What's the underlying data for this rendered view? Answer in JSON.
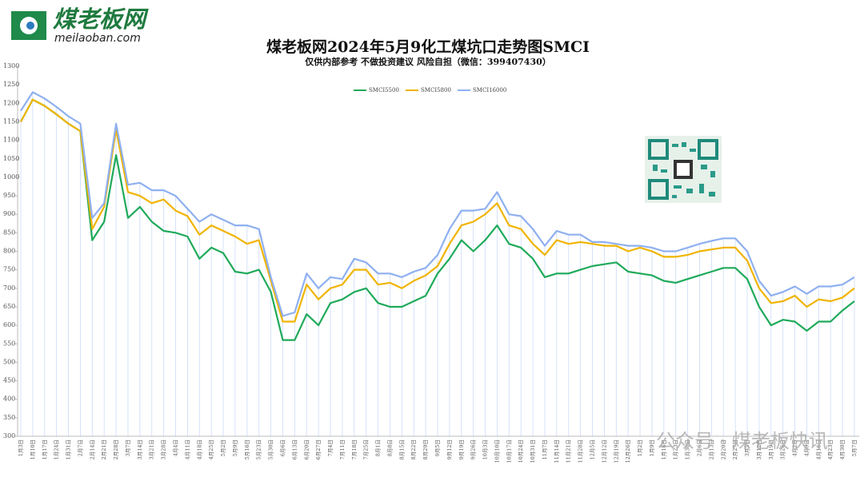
{
  "logo": {
    "name": "煤老板网",
    "site": "meilaoban.com"
  },
  "watermark": "公众号 · 煤老板快讯",
  "chart_data": {
    "type": "line",
    "title": "煤老板网2024年5月9化工煤坑口走势图SMCI",
    "subtitle": "仅供内部参考 不做投资建议 风险自担（微信：399407430）",
    "categories": [
      "1月3日",
      "1月10日",
      "1月17日",
      "1月24日",
      "1月31日",
      "2月7日",
      "2月14日",
      "2月21日",
      "2月28日",
      "3月7日",
      "3月14日",
      "3月21日",
      "3月28日",
      "4月4日",
      "4月11日",
      "4月18日",
      "4月25日",
      "5月2日",
      "5月9日",
      "5月16日",
      "5月23日",
      "5月30日",
      "6月6日",
      "6月13日",
      "6月20日",
      "6月27日",
      "7月4日",
      "7月11日",
      "7月18日",
      "7月25日",
      "8月1日",
      "8月8日",
      "8月15日",
      "8月22日",
      "8月29日",
      "9月5日",
      "9月12日",
      "9月19日",
      "9月26日",
      "10月3日",
      "10月10日",
      "10月17日",
      "10月24日",
      "10月31日",
      "11月7日",
      "11月14日",
      "11月21日",
      "11月28日",
      "12月5日",
      "12月12日",
      "12月19日",
      "12月26日",
      "1月2日",
      "1月9日",
      "1月16日",
      "1月23日",
      "1月30日",
      "2月6日",
      "2月13日",
      "2月20日",
      "2月27日",
      "3月5日",
      "3月12日",
      "3月19日",
      "3月26日",
      "4月2日",
      "4月9日",
      "4月16日",
      "4月23日",
      "4月30日",
      "5月7日"
    ],
    "series": [
      {
        "name": "SMCI5500",
        "color": "#1faa5a",
        "values": [
          1150,
          1210,
          1193,
          1170,
          1145,
          1125,
          830,
          880,
          1060,
          890,
          920,
          880,
          855,
          850,
          840,
          780,
          810,
          795,
          745,
          740,
          750,
          690,
          560,
          560,
          630,
          600,
          660,
          670,
          690,
          700,
          660,
          650,
          650,
          665,
          680,
          740,
          780,
          830,
          800,
          830,
          870,
          820,
          810,
          780,
          730,
          740,
          740,
          750,
          760,
          765,
          770,
          745,
          740,
          735,
          720,
          715,
          725,
          735,
          745,
          755,
          755,
          725,
          650,
          600,
          615,
          610,
          585,
          610,
          610,
          640,
          665
        ]
      },
      {
        "name": "SMCI5800",
        "color": "#f0b400",
        "values": [
          1150,
          1210,
          1193,
          1170,
          1145,
          1125,
          860,
          920,
          1130,
          960,
          950,
          930,
          940,
          910,
          895,
          845,
          870,
          855,
          840,
          820,
          830,
          720,
          610,
          610,
          710,
          670,
          700,
          710,
          750,
          750,
          710,
          715,
          700,
          720,
          735,
          760,
          820,
          870,
          880,
          900,
          930,
          870,
          860,
          820,
          790,
          830,
          820,
          825,
          820,
          815,
          815,
          800,
          810,
          800,
          785,
          785,
          790,
          800,
          805,
          810,
          810,
          775,
          700,
          660,
          665,
          680,
          650,
          670,
          665,
          675,
          700
        ]
      },
      {
        "name": "SMCI16000",
        "color": "#8fb0f0",
        "values": [
          1180,
          1230,
          1213,
          1190,
          1165,
          1145,
          890,
          930,
          1145,
          980,
          985,
          965,
          965,
          950,
          915,
          880,
          900,
          885,
          870,
          870,
          860,
          730,
          625,
          635,
          740,
          700,
          730,
          725,
          780,
          770,
          740,
          740,
          730,
          745,
          755,
          790,
          860,
          910,
          910,
          915,
          960,
          900,
          895,
          860,
          815,
          855,
          845,
          845,
          825,
          825,
          820,
          815,
          815,
          810,
          800,
          800,
          810,
          820,
          828,
          835,
          835,
          800,
          720,
          680,
          690,
          705,
          685,
          705,
          705,
          710,
          730
        ]
      }
    ],
    "ylim": [
      300,
      1300
    ],
    "yticks": [
      300,
      350,
      400,
      450,
      500,
      550,
      600,
      650,
      700,
      750,
      800,
      850,
      900,
      950,
      1000,
      1050,
      1100,
      1150,
      1200,
      1250,
      1300
    ],
    "legend": "top"
  }
}
